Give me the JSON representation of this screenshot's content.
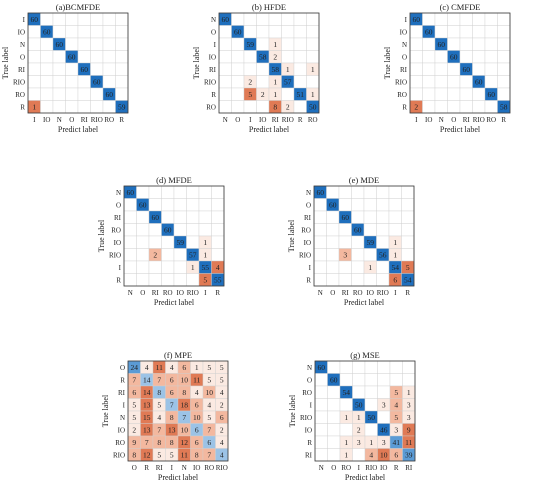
{
  "chart_data": [
    {
      "type": "heatmap",
      "title": "(a)BCMFDE",
      "xlabel": "Predict label",
      "ylabel": "True label",
      "row_labels": [
        "I",
        "IO",
        "N",
        "O",
        "RI",
        "RIO",
        "RO",
        "R"
      ],
      "col_labels": [
        "I",
        "IO",
        "N",
        "O",
        "RI",
        "RIO",
        "RO",
        "R"
      ],
      "values": [
        [
          60,
          0,
          0,
          0,
          0,
          0,
          0,
          0
        ],
        [
          0,
          60,
          0,
          0,
          0,
          0,
          0,
          0
        ],
        [
          0,
          0,
          60,
          0,
          0,
          0,
          0,
          0
        ],
        [
          0,
          0,
          0,
          60,
          0,
          0,
          0,
          0
        ],
        [
          0,
          0,
          0,
          0,
          60,
          0,
          0,
          0
        ],
        [
          0,
          0,
          0,
          0,
          0,
          60,
          0,
          0
        ],
        [
          0,
          0,
          0,
          0,
          0,
          0,
          60,
          0
        ],
        [
          1,
          0,
          0,
          0,
          0,
          0,
          0,
          59
        ]
      ]
    },
    {
      "type": "heatmap",
      "title": "(b) HFDE",
      "xlabel": "Predict label",
      "ylabel": "True label",
      "row_labels": [
        "N",
        "O",
        "I",
        "IO",
        "RI",
        "RIO",
        "R",
        "RO"
      ],
      "col_labels": [
        "N",
        "O",
        "I",
        "IO",
        "RI",
        "RIO",
        "R",
        "RO"
      ],
      "values": [
        [
          60,
          0,
          0,
          0,
          0,
          0,
          0,
          0
        ],
        [
          0,
          60,
          0,
          0,
          0,
          0,
          0,
          0
        ],
        [
          0,
          0,
          59,
          0,
          1,
          0,
          0,
          0
        ],
        [
          0,
          0,
          0,
          58,
          2,
          0,
          0,
          0
        ],
        [
          0,
          0,
          0,
          0,
          58,
          1,
          0,
          1
        ],
        [
          0,
          0,
          2,
          0,
          1,
          57,
          0,
          0
        ],
        [
          0,
          0,
          5,
          2,
          1,
          0,
          51,
          1
        ],
        [
          0,
          0,
          0,
          0,
          8,
          2,
          0,
          50
        ]
      ]
    },
    {
      "type": "heatmap",
      "title": "(c) CMFDE",
      "xlabel": "Predict label",
      "ylabel": "True label",
      "row_labels": [
        "I",
        "IO",
        "N",
        "O",
        "RI",
        "RIO",
        "RO",
        "R"
      ],
      "col_labels": [
        "I",
        "IO",
        "N",
        "O",
        "RI",
        "RIO",
        "RO",
        "R"
      ],
      "values": [
        [
          60,
          0,
          0,
          0,
          0,
          0,
          0,
          0
        ],
        [
          0,
          60,
          0,
          0,
          0,
          0,
          0,
          0
        ],
        [
          0,
          0,
          60,
          0,
          0,
          0,
          0,
          0
        ],
        [
          0,
          0,
          0,
          60,
          0,
          0,
          0,
          0
        ],
        [
          0,
          0,
          0,
          0,
          60,
          0,
          0,
          0
        ],
        [
          0,
          0,
          0,
          0,
          0,
          60,
          0,
          0
        ],
        [
          0,
          0,
          0,
          0,
          0,
          0,
          60,
          0
        ],
        [
          2,
          0,
          0,
          0,
          0,
          0,
          0,
          58
        ]
      ]
    },
    {
      "type": "heatmap",
      "title": "(d) MFDE",
      "xlabel": "Predict label",
      "ylabel": "True label",
      "row_labels": [
        "N",
        "O",
        "RI",
        "RO",
        "IO",
        "RIO",
        "I",
        "R"
      ],
      "col_labels": [
        "N",
        "O",
        "RI",
        "RO",
        "IO",
        "RIO",
        "I",
        "R"
      ],
      "values": [
        [
          60,
          0,
          0,
          0,
          0,
          0,
          0,
          0
        ],
        [
          0,
          60,
          0,
          0,
          0,
          0,
          0,
          0
        ],
        [
          0,
          0,
          60,
          0,
          0,
          0,
          0,
          0
        ],
        [
          0,
          0,
          0,
          60,
          0,
          0,
          0,
          0
        ],
        [
          0,
          0,
          0,
          0,
          59,
          0,
          1,
          0
        ],
        [
          0,
          0,
          2,
          0,
          0,
          57,
          1,
          0
        ],
        [
          0,
          0,
          0,
          0,
          0,
          1,
          55,
          4
        ],
        [
          0,
          0,
          0,
          0,
          0,
          0,
          5,
          55
        ]
      ]
    },
    {
      "type": "heatmap",
      "title": "(e) MDE",
      "xlabel": "Predict label",
      "ylabel": "True label",
      "row_labels": [
        "N",
        "O",
        "RI",
        "RO",
        "IO",
        "RIO",
        "I",
        "R"
      ],
      "col_labels": [
        "N",
        "O",
        "RI",
        "RO",
        "IO",
        "RIO",
        "I",
        "R"
      ],
      "values": [
        [
          60,
          0,
          0,
          0,
          0,
          0,
          0,
          0
        ],
        [
          0,
          60,
          0,
          0,
          0,
          0,
          0,
          0
        ],
        [
          0,
          0,
          60,
          0,
          0,
          0,
          0,
          0
        ],
        [
          0,
          0,
          0,
          60,
          0,
          0,
          0,
          0
        ],
        [
          0,
          0,
          0,
          0,
          59,
          0,
          1,
          0
        ],
        [
          0,
          0,
          3,
          0,
          0,
          56,
          1,
          0
        ],
        [
          0,
          0,
          0,
          0,
          1,
          0,
          54,
          5
        ],
        [
          0,
          0,
          0,
          0,
          0,
          0,
          6,
          54
        ]
      ]
    },
    {
      "type": "heatmap",
      "title": "(f) MPE",
      "xlabel": "Predict label",
      "ylabel": "True label",
      "row_labels": [
        "O",
        "R",
        "RI",
        "I",
        "N",
        "IO",
        "RO",
        "RIO"
      ],
      "col_labels": [
        "O",
        "R",
        "RI",
        "I",
        "N",
        "IO",
        "RO",
        "RIO"
      ],
      "values": [
        [
          24,
          4,
          11,
          4,
          6,
          1,
          5,
          5
        ],
        [
          7,
          14,
          7,
          6,
          10,
          11,
          5,
          5
        ],
        [
          6,
          14,
          8,
          6,
          8,
          4,
          10,
          4
        ],
        [
          5,
          13,
          5,
          7,
          18,
          6,
          4,
          2
        ],
        [
          5,
          15,
          4,
          8,
          7,
          10,
          5,
          6
        ],
        [
          2,
          13,
          7,
          13,
          10,
          6,
          7,
          2
        ],
        [
          9,
          7,
          8,
          8,
          12,
          6,
          6,
          4
        ],
        [
          8,
          12,
          5,
          5,
          11,
          8,
          7,
          4
        ]
      ]
    },
    {
      "type": "heatmap",
      "title": "(g) MSE",
      "xlabel": "Predict label",
      "ylabel": "True label",
      "row_labels": [
        "N",
        "O",
        "RO",
        "I",
        "RIO",
        "IO",
        "R",
        "RI"
      ],
      "col_labels": [
        "N",
        "O",
        "RO",
        "I",
        "RIO",
        "IO",
        "R",
        "RI"
      ],
      "values": [
        [
          60,
          0,
          0,
          0,
          0,
          0,
          0,
          0
        ],
        [
          0,
          60,
          0,
          0,
          0,
          0,
          0,
          0
        ],
        [
          0,
          0,
          54,
          0,
          0,
          0,
          5,
          1
        ],
        [
          0,
          0,
          0,
          50,
          0,
          3,
          4,
          3
        ],
        [
          0,
          0,
          1,
          1,
          50,
          0,
          5,
          3
        ],
        [
          0,
          0,
          0,
          2,
          0,
          46,
          3,
          9
        ],
        [
          0,
          0,
          1,
          3,
          1,
          3,
          41,
          11
        ],
        [
          0,
          0,
          1,
          0,
          4,
          10,
          6,
          39
        ]
      ]
    }
  ],
  "colors": {
    "diag_high": "#1f6fbd",
    "diag_mid": "#5b9bd5",
    "diag_low": "#9cc3e6",
    "off_low": "#fbeae2",
    "off_mid": "#f3b89f",
    "off_high": "#e07a55",
    "grid": "#d0d0d0",
    "frame": "#333333"
  }
}
